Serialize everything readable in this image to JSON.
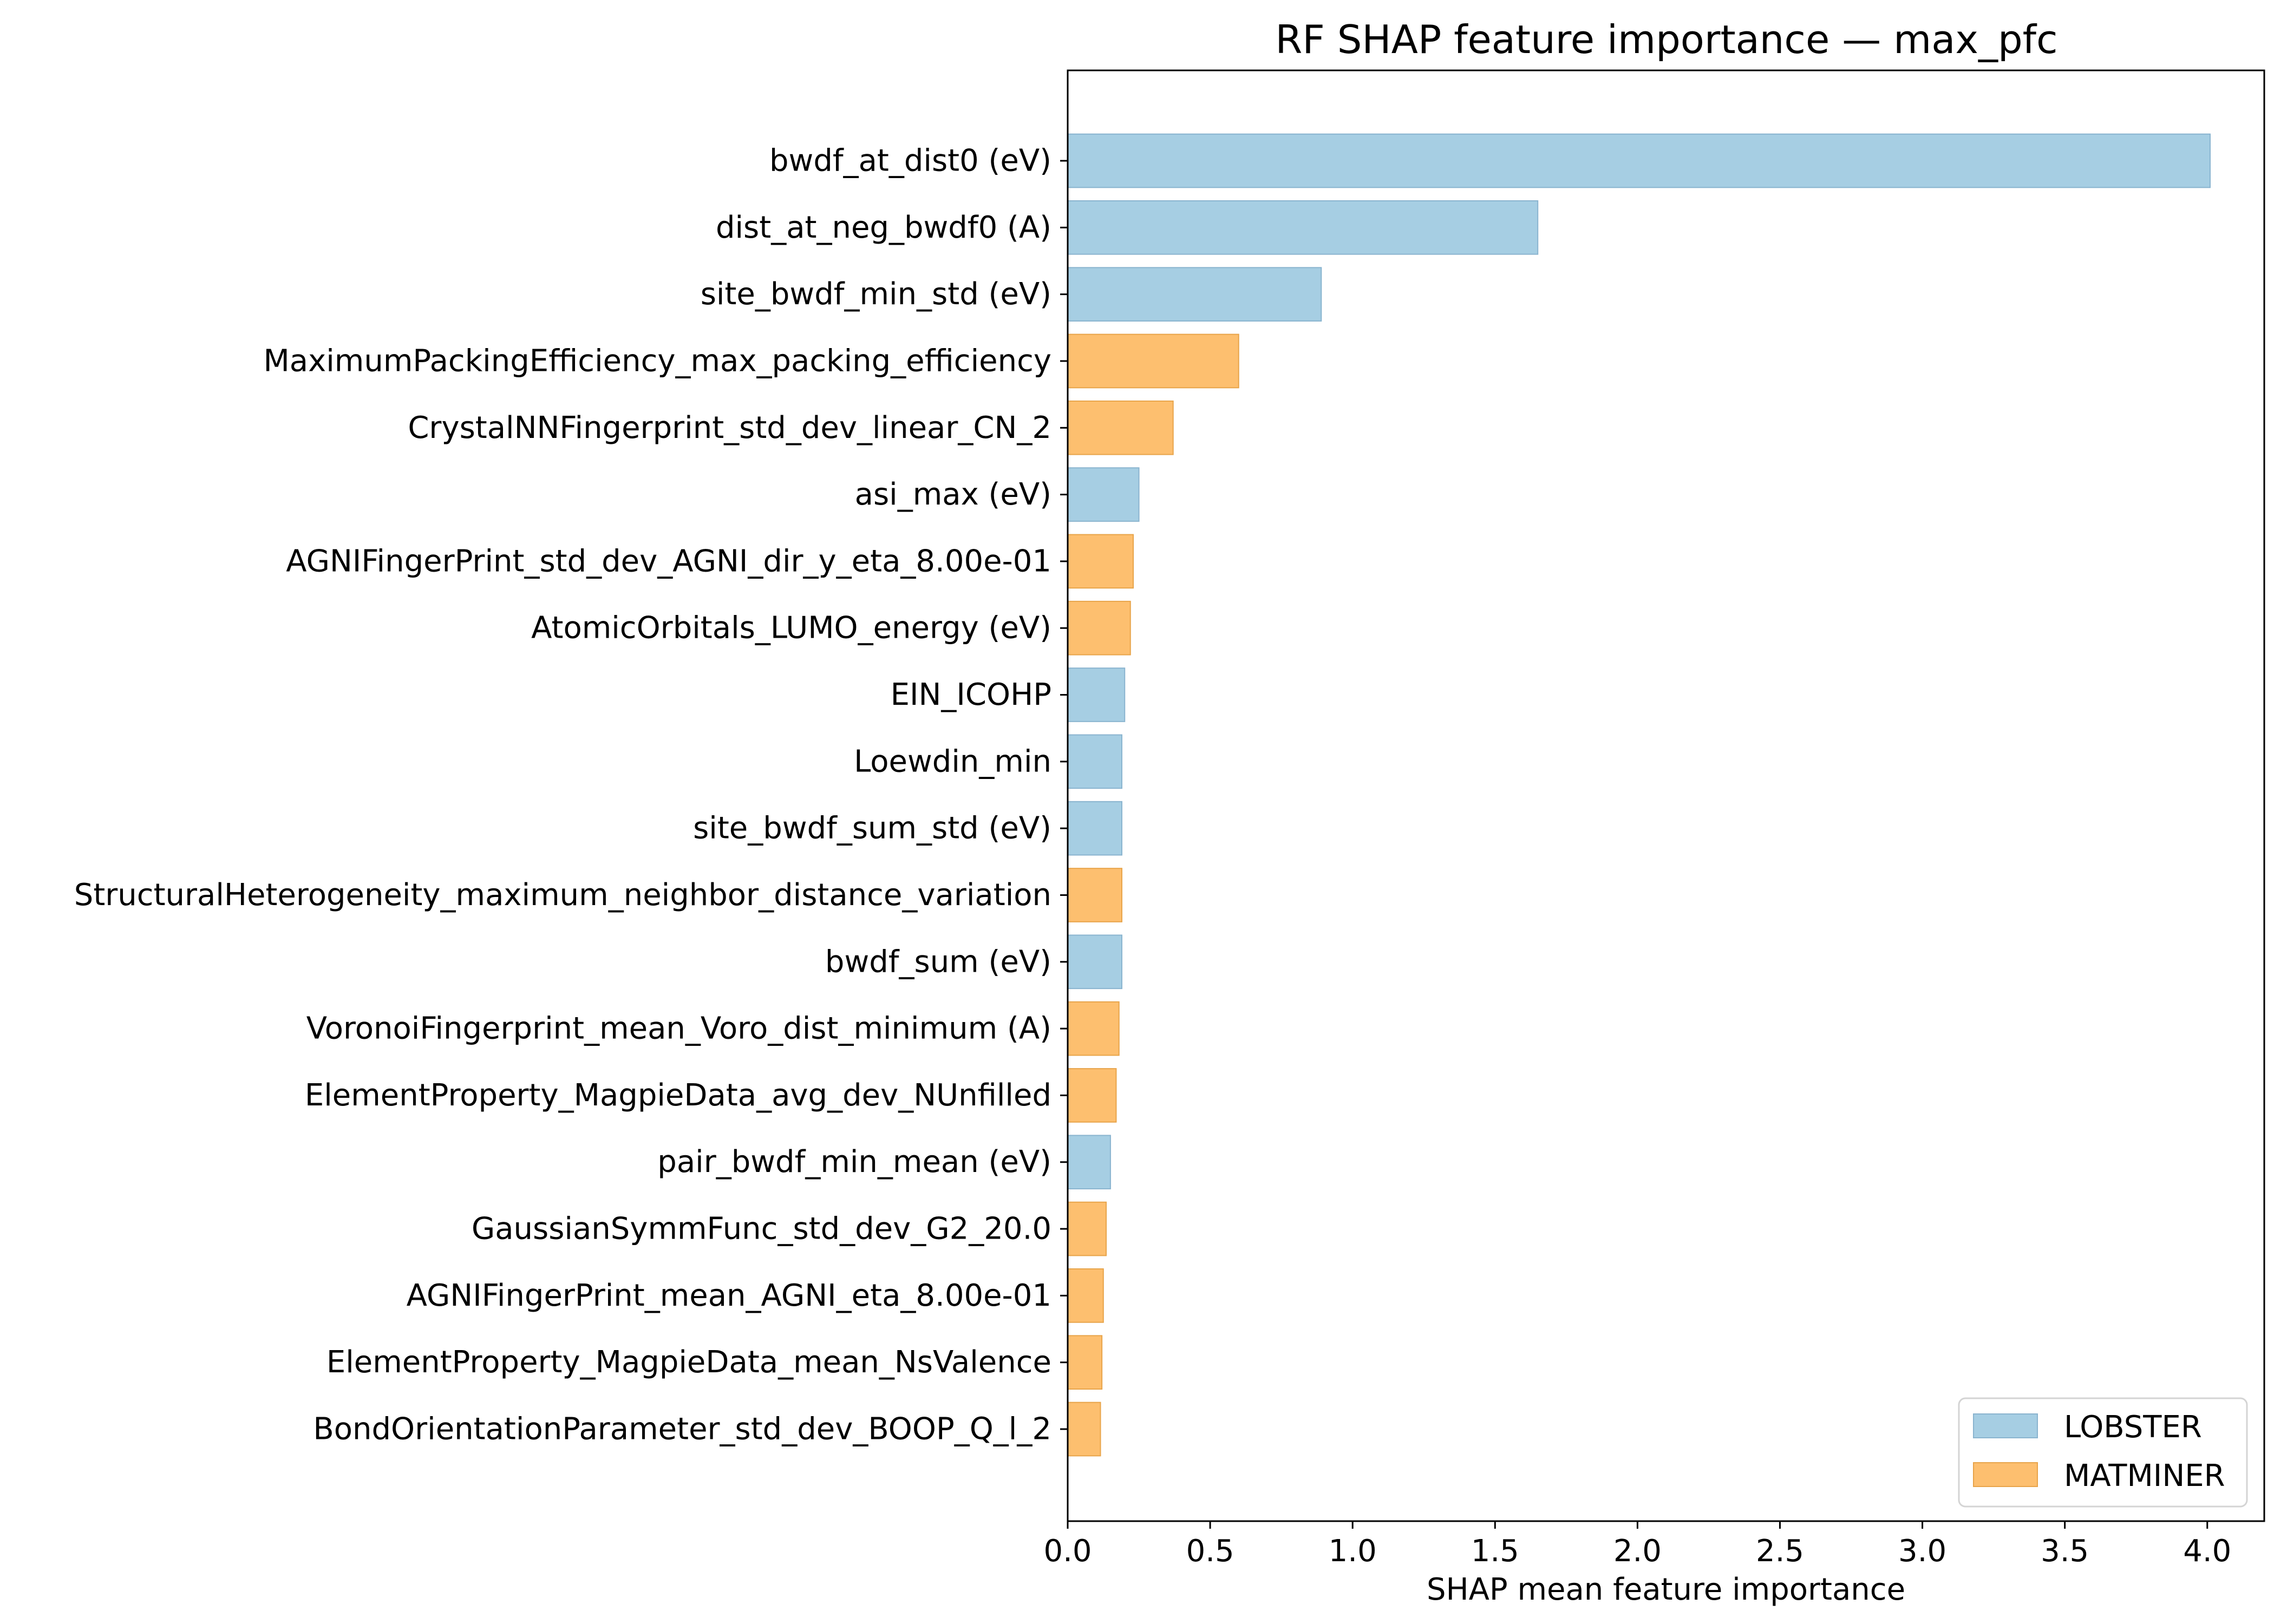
{
  "chart_data": {
    "type": "bar",
    "orientation": "horizontal",
    "title": "RF SHAP feature importance — max_pfc",
    "xlabel": "SHAP mean feature importance",
    "ylabel": "",
    "xlim": [
      0,
      4.2
    ],
    "xticks": [
      0.0,
      0.5,
      1.0,
      1.5,
      2.0,
      2.5,
      3.0,
      3.5,
      4.0
    ],
    "xtick_labels": [
      "0.0",
      "0.5",
      "1.0",
      "1.5",
      "2.0",
      "2.5",
      "3.0",
      "3.5",
      "4.0"
    ],
    "grid": false,
    "legend_position": "bottom-right",
    "groups": [
      {
        "name": "LOBSTER",
        "color": "#a6cee3"
      },
      {
        "name": "MATMINER",
        "color": "#fdbf6f"
      }
    ],
    "edge_colors": {
      "LOBSTER": "#8ab4cf",
      "MATMINER": "#e8a44a"
    },
    "bars": [
      {
        "label": "bwdf_at_dist0 (eV)",
        "value": 4.01,
        "group": "LOBSTER"
      },
      {
        "label": "dist_at_neg_bwdf0 (A)",
        "value": 1.65,
        "group": "LOBSTER"
      },
      {
        "label": "site_bwdf_min_std (eV)",
        "value": 0.89,
        "group": "LOBSTER"
      },
      {
        "label": "MaximumPackingEfficiency_max_packing_efficiency",
        "value": 0.6,
        "group": "MATMINER"
      },
      {
        "label": "CrystalNNFingerprint_std_dev_linear_CN_2",
        "value": 0.37,
        "group": "MATMINER"
      },
      {
        "label": "asi_max (eV)",
        "value": 0.25,
        "group": "LOBSTER"
      },
      {
        "label": "AGNIFingerPrint_std_dev_AGNI_dir_y_eta_8.00e-01",
        "value": 0.23,
        "group": "MATMINER"
      },
      {
        "label": "AtomicOrbitals_LUMO_energy (eV)",
        "value": 0.22,
        "group": "MATMINER"
      },
      {
        "label": "EIN_ICOHP",
        "value": 0.2,
        "group": "LOBSTER"
      },
      {
        "label": "Loewdin_min",
        "value": 0.19,
        "group": "LOBSTER"
      },
      {
        "label": "site_bwdf_sum_std (eV)",
        "value": 0.19,
        "group": "LOBSTER"
      },
      {
        "label": "StructuralHeterogeneity_maximum_neighbor_distance_variation",
        "value": 0.19,
        "group": "MATMINER"
      },
      {
        "label": "bwdf_sum (eV)",
        "value": 0.19,
        "group": "LOBSTER"
      },
      {
        "label": "VoronoiFingerprint_mean_Voro_dist_minimum (A)",
        "value": 0.18,
        "group": "MATMINER"
      },
      {
        "label": "ElementProperty_MagpieData_avg_dev_NUnfilled",
        "value": 0.17,
        "group": "MATMINER"
      },
      {
        "label": "pair_bwdf_min_mean (eV)",
        "value": 0.15,
        "group": "LOBSTER"
      },
      {
        "label": "GaussianSymmFunc_std_dev_G2_20.0",
        "value": 0.135,
        "group": "MATMINER"
      },
      {
        "label": "AGNIFingerPrint_mean_AGNI_eta_8.00e-01",
        "value": 0.125,
        "group": "MATMINER"
      },
      {
        "label": "ElementProperty_MagpieData_mean_NsValence",
        "value": 0.12,
        "group": "MATMINER"
      },
      {
        "label": "BondOrientationParameter_std_dev_BOOP_Q_l_2",
        "value": 0.115,
        "group": "MATMINER"
      }
    ]
  }
}
